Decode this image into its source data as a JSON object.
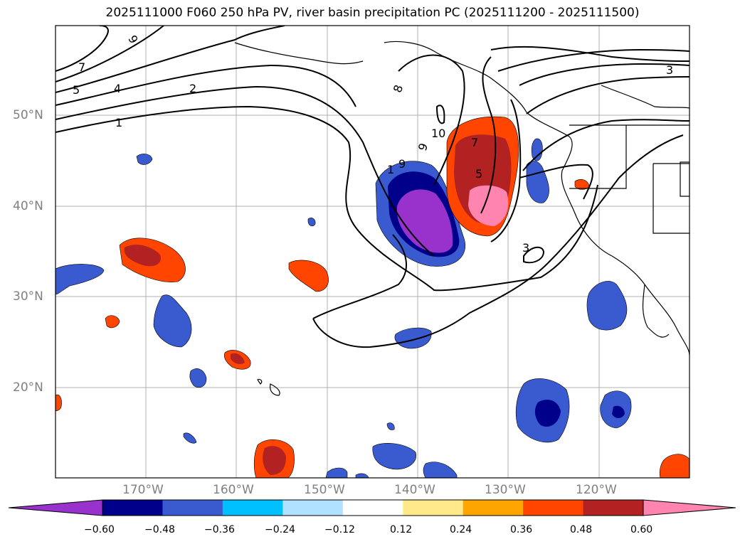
{
  "title": "2025111000 F060 250 hPa PV, river basin precipitation PC (2025111200 - 2025111500)",
  "lat_labels": [
    "50°N",
    "40°N",
    "30°N",
    "20°N"
  ],
  "lon_labels": [
    "170°W",
    "160°W",
    "150°W",
    "140°W",
    "130°W",
    "120°W"
  ],
  "contour_labels": [
    "9",
    "7",
    "5",
    "4",
    "2",
    "1",
    "8",
    "9",
    "10",
    "9",
    "1",
    "7",
    "5",
    "3",
    "3"
  ],
  "colorbar": {
    "colors": [
      "#9932cc",
      "#00008b",
      "#3a5bd0",
      "#00bfff",
      "#b0e2ff",
      "#ffffff",
      "#ffe98a",
      "#ffa500",
      "#ff4500",
      "#b22222",
      "#ff85b0"
    ],
    "tick_labels": [
      "−0.60",
      "−0.48",
      "−0.36",
      "−0.24",
      "−0.12",
      "0.12",
      "0.24",
      "0.36",
      "0.48",
      "0.60"
    ]
  }
}
